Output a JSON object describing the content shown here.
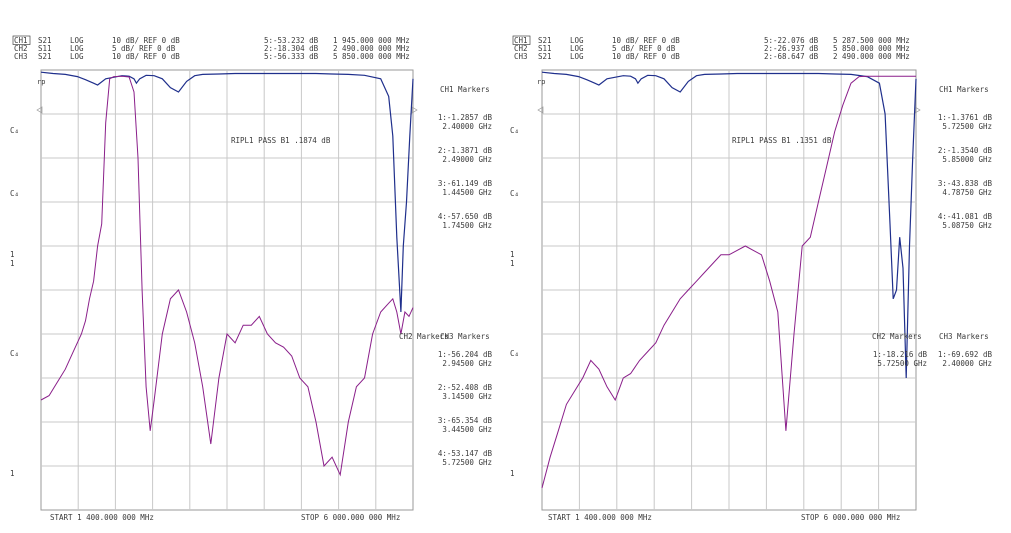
{
  "panels": [
    {
      "channels": [
        {
          "id": "CH1",
          "param": "S21",
          "fmt": "LOG",
          "scale": "10 dB/ REF 0 dB"
        },
        {
          "id": "CH2",
          "param": "S11",
          "fmt": "LOG",
          "scale": "5 dB/ REF 0 dB"
        },
        {
          "id": "CH3",
          "param": "S21",
          "fmt": "LOG",
          "scale": "10 dB/ REF 0 dB"
        }
      ],
      "active_markers": [
        {
          "label": "5:-53.232 dB",
          "freq": "1 945.000 000 MHz"
        },
        {
          "label": "2:-18.304 dB",
          "freq": "2 490.000 000 MHz"
        },
        {
          "label": "5:-56.333 dB",
          "freq": "5 850.000 000 MHz"
        }
      ],
      "ripple": "RIPL1  PASS  B1  .1874 dB",
      "ch1_markers_title": "CH1 Markers",
      "ch1_markers": [
        {
          "val": "1:-1.2857 dB",
          "freq": "2.40000 GHz"
        },
        {
          "val": "2:-1.3871 dB",
          "freq": "2.49000 GHz"
        },
        {
          "val": "3:-61.149 dB",
          "freq": "1.44500 GHz"
        },
        {
          "val": "4:-57.650 dB",
          "freq": "1.74500 GHz"
        }
      ],
      "ch2_markers_title": "CH2 Markers",
      "ch3_markers_title": "",
      "ch3_markers": [
        {
          "val": "1:-56.204 dB",
          "freq": "2.94500 GHz"
        },
        {
          "val": "2:-52.408 dB",
          "freq": "3.14500 GHz"
        },
        {
          "val": "3:-65.354 dB",
          "freq": "3.44500 GHz"
        },
        {
          "val": "4:-53.147 dB",
          "freq": "5.72500 GHz"
        }
      ],
      "start": "START 1 400.000 000 MHz",
      "stop": "STOP 6 000.000 000 MHz",
      "left_labels": [
        "rp",
        "C₄",
        "C₄",
        "1",
        "1",
        "C₄",
        "1"
      ]
    },
    {
      "channels": [
        {
          "id": "CH1",
          "param": "S21",
          "fmt": "LOG",
          "scale": "10 dB/ REF 0 dB"
        },
        {
          "id": "CH2",
          "param": "S11",
          "fmt": "LOG",
          "scale": "5 dB/ REF 0 dB"
        },
        {
          "id": "CH3",
          "param": "S21",
          "fmt": "LOG",
          "scale": "10 dB/ REF 0 dB"
        }
      ],
      "active_markers": [
        {
          "label": "5:-22.076 dB",
          "freq": "5 287.500 000 MHz"
        },
        {
          "label": "2:-26.937 dB",
          "freq": "5 850.000 000 MHz"
        },
        {
          "label": "2:-68.647 dB",
          "freq": "2 490.000 000 MHz"
        }
      ],
      "ripple": "RIPL1  PASS  B1  .1351 dB",
      "ch1_markers_title": "CH1 Markers",
      "ch1_markers": [
        {
          "val": "1:-1.3761 dB",
          "freq": "5.72500 GHz"
        },
        {
          "val": "2:-1.3540 dB",
          "freq": "5.85000 GHz"
        },
        {
          "val": "3:-43.838 dB",
          "freq": "4.78750 GHz"
        },
        {
          "val": "4:-41.081 dB",
          "freq": "5.08750 GHz"
        }
      ],
      "ch2_markers_title": "CH2 Markers",
      "ch3_markers_title": "CH3 Markers",
      "ch2_markers": [
        {
          "val": "1:-18.216 dB",
          "freq": "5.72500 GHz"
        }
      ],
      "ch3_markers": [
        {
          "val": "1:-69.692 dB",
          "freq": "2.40000 GHz"
        }
      ],
      "start": "START 1 400.000 000 MHz",
      "stop": "STOP 6 000.000 000 MHz",
      "left_labels": [
        "rp",
        "C₄",
        "C₄",
        "1",
        "1",
        "C₄",
        "1"
      ]
    }
  ],
  "chart_data": [
    {
      "type": "line",
      "title": "",
      "xlabel": "",
      "ylabel": "",
      "xlim": [
        1.4,
        6.0
      ],
      "ylim": [
        -100,
        0
      ],
      "series": [
        {
          "name": "S21",
          "color": "#1f2f8c",
          "x": [
            1.4,
            1.55,
            1.7,
            1.85,
            1.95,
            2.0,
            2.05,
            2.1,
            2.2,
            2.4,
            2.49,
            2.55,
            2.58,
            2.62,
            2.7,
            2.8,
            2.9,
            3.0,
            3.1,
            3.2,
            3.3,
            3.4,
            3.6,
            3.8,
            4.0,
            4.2,
            4.4,
            4.6,
            4.8,
            5.0,
            5.2,
            5.4,
            5.6,
            5.7,
            5.75,
            5.8,
            5.85,
            5.88,
            5.92,
            5.96,
            6.0
          ],
          "y": [
            -0.5,
            -0.8,
            -1.0,
            -1.5,
            -2.2,
            -2.6,
            -3.0,
            -3.4,
            -2.0,
            -1.3,
            -1.4,
            -2.0,
            -3.0,
            -2.0,
            -1.2,
            -1.3,
            -2.0,
            -4.0,
            -5.0,
            -2.6,
            -1.3,
            -1.0,
            -0.9,
            -0.8,
            -0.8,
            -0.8,
            -0.8,
            -0.8,
            -0.8,
            -0.9,
            -1.0,
            -1.2,
            -2.0,
            -6.0,
            -15.0,
            -38.0,
            -55.0,
            -40.0,
            -30.0,
            -15.0,
            -2.0
          ]
        },
        {
          "name": "S21",
          "color": "#8a1f8a",
          "x": [
            1.4,
            1.5,
            1.6,
            1.7,
            1.8,
            1.9,
            1.95,
            2.0,
            2.05,
            2.1,
            2.15,
            2.2,
            2.25,
            2.3,
            2.4,
            2.49,
            2.55,
            2.6,
            2.65,
            2.7,
            2.75,
            2.8,
            2.9,
            3.0,
            3.1,
            3.2,
            3.3,
            3.4,
            3.5,
            3.6,
            3.7,
            3.8,
            3.9,
            4.0,
            4.1,
            4.2,
            4.3,
            4.4,
            4.5,
            4.6,
            4.7,
            4.8,
            4.9,
            5.0,
            5.1,
            5.2,
            5.3,
            5.4,
            5.5,
            5.6,
            5.7,
            5.75,
            5.8,
            5.85,
            5.9,
            5.95,
            6.0
          ],
          "y": [
            -75,
            -74,
            -71,
            -68,
            -64,
            -60,
            -57,
            -52,
            -48,
            -40,
            -35,
            -12,
            -2,
            -1.5,
            -1.4,
            -1.6,
            -5,
            -20,
            -50,
            -72,
            -82,
            -75,
            -60,
            -52,
            -50,
            -55,
            -62,
            -72,
            -85,
            -70,
            -60,
            -62,
            -58,
            -58,
            -56,
            -60,
            -62,
            -63,
            -65,
            -70,
            -72,
            -80,
            -90,
            -88,
            -92,
            -80,
            -72,
            -70,
            -60,
            -55,
            -53,
            -52,
            -55,
            -60,
            -55,
            -56,
            -54
          ]
        }
      ]
    },
    {
      "type": "line",
      "title": "",
      "xlabel": "",
      "ylabel": "",
      "xlim": [
        1.4,
        6.0
      ],
      "ylim": [
        -100,
        0
      ],
      "series": [
        {
          "name": "S21",
          "color": "#1f2f8c",
          "x": [
            1.4,
            1.55,
            1.7,
            1.85,
            1.95,
            2.0,
            2.05,
            2.1,
            2.2,
            2.4,
            2.49,
            2.55,
            2.58,
            2.62,
            2.7,
            2.8,
            2.9,
            3.0,
            3.1,
            3.2,
            3.3,
            3.4,
            3.6,
            3.8,
            4.0,
            4.2,
            4.4,
            4.6,
            4.8,
            5.0,
            5.2,
            5.4,
            5.55,
            5.62,
            5.68,
            5.72,
            5.76,
            5.8,
            5.84,
            5.88,
            5.92,
            5.96,
            6.0
          ],
          "y": [
            -0.5,
            -0.8,
            -1.0,
            -1.5,
            -2.2,
            -2.6,
            -3.0,
            -3.4,
            -2.0,
            -1.3,
            -1.4,
            -2.0,
            -3.0,
            -2.0,
            -1.2,
            -1.3,
            -2.0,
            -4.0,
            -5.0,
            -2.6,
            -1.3,
            -1.0,
            -0.9,
            -0.8,
            -0.8,
            -0.8,
            -0.8,
            -0.8,
            -0.8,
            -0.9,
            -1.0,
            -1.5,
            -3.0,
            -10.0,
            -35.0,
            -52.0,
            -50.0,
            -38.0,
            -45.0,
            -70.0,
            -40.0,
            -20.0,
            -2.0
          ]
        },
        {
          "name": "S21",
          "color": "#8a1f8a",
          "x": [
            1.4,
            1.5,
            1.6,
            1.7,
            1.8,
            1.9,
            2.0,
            2.1,
            2.2,
            2.3,
            2.4,
            2.49,
            2.6,
            2.7,
            2.8,
            2.9,
            3.0,
            3.1,
            3.2,
            3.3,
            3.4,
            3.5,
            3.6,
            3.7,
            3.8,
            3.9,
            4.0,
            4.1,
            4.2,
            4.3,
            4.4,
            4.5,
            4.6,
            4.7,
            4.8,
            4.9,
            5.0,
            5.1,
            5.2,
            5.3,
            5.4,
            5.5,
            5.6,
            5.7,
            5.8,
            5.9,
            6.0
          ],
          "y": [
            -95,
            -88,
            -82,
            -76,
            -73,
            -70,
            -66,
            -68,
            -72,
            -75,
            -70,
            -69,
            -66,
            -64,
            -62,
            -58,
            -55,
            -52,
            -50,
            -48,
            -46,
            -44,
            -42,
            -42,
            -41,
            -40,
            -41,
            -42,
            -48,
            -55,
            -82,
            -60,
            -40,
            -38,
            -30,
            -22,
            -14,
            -8,
            -3,
            -1.5,
            -1.4,
            -1.4,
            -1.4,
            -1.4,
            -1.4,
            -1.4,
            -1.4
          ]
        }
      ]
    }
  ]
}
